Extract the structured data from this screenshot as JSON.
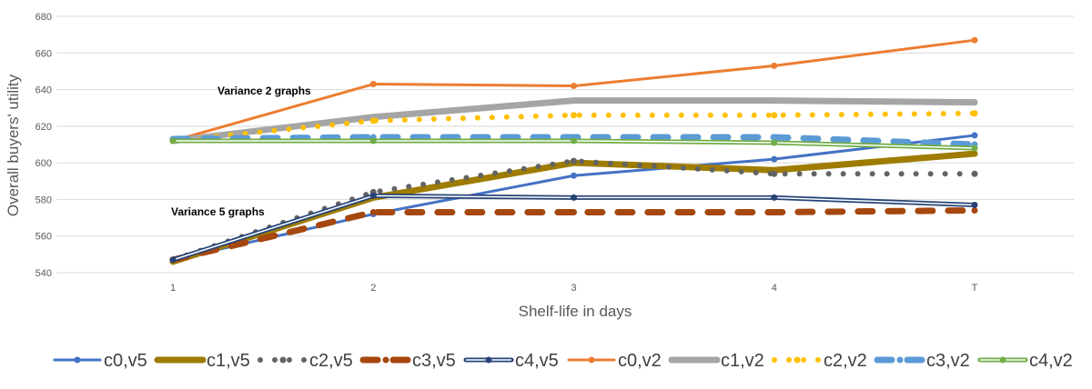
{
  "chart_data": {
    "type": "line",
    "xlabel": "Shelf-life in days",
    "ylabel": "Overall buyers' utility",
    "categories": [
      "1",
      "2",
      "3",
      "4",
      "T"
    ],
    "ylim": [
      540,
      680
    ],
    "yticks": [
      540,
      560,
      580,
      600,
      620,
      640,
      660,
      680
    ],
    "grid": true,
    "legend": "bottom",
    "annotations": [
      "Variance 2 graphs",
      "Variance 5 graphs"
    ],
    "series": [
      {
        "name": "c0,v5",
        "color": "#4472C4",
        "style": "solid-marker",
        "values": [
          547,
          572,
          593,
          602,
          615
        ]
      },
      {
        "name": "c1,v5",
        "color": "#9E7C00",
        "style": "thick",
        "values": [
          546,
          581,
          600,
          596,
          605
        ]
      },
      {
        "name": "c2,v5",
        "color": "#636363",
        "style": "dotted",
        "values": [
          547,
          584,
          601,
          594,
          594
        ]
      },
      {
        "name": "c3,v5",
        "color": "#A5470E",
        "style": "dashed",
        "values": [
          547,
          573,
          573,
          573,
          574
        ]
      },
      {
        "name": "c4,v5",
        "color": "#264478",
        "style": "double",
        "values": [
          547,
          582,
          581,
          581,
          577
        ]
      },
      {
        "name": "c0,v2",
        "color": "#ED7D31",
        "style": "solid-marker",
        "values": [
          612,
          643,
          642,
          653,
          667
        ]
      },
      {
        "name": "c1,v2",
        "color": "#A5A5A5",
        "style": "thick",
        "values": [
          612,
          625,
          634,
          634,
          633
        ]
      },
      {
        "name": "c2,v2",
        "color": "#FFC000",
        "style": "dotted",
        "values": [
          612,
          623,
          626,
          626,
          627
        ]
      },
      {
        "name": "c3,v2",
        "color": "#5B9BD5",
        "style": "dashed",
        "values": [
          613,
          614,
          614,
          614,
          610
        ]
      },
      {
        "name": "c4,v2",
        "color": "#70AD47",
        "style": "double",
        "values": [
          612,
          612,
          612,
          611,
          608
        ]
      }
    ]
  }
}
